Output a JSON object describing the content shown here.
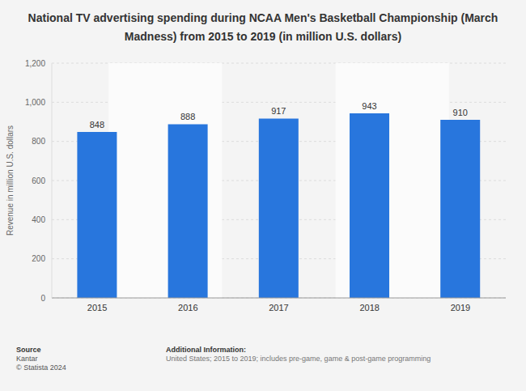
{
  "chart_data": {
    "type": "bar",
    "title": "National TV advertising spending during NCAA Men's Basketball Championship (March Madness) from 2015 to 2019 (in million U.S. dollars)",
    "y_label": "Revenue in million U.S. dollars",
    "categories": [
      "2015",
      "2016",
      "2017",
      "2018",
      "2019"
    ],
    "values": [
      848,
      888,
      917,
      943,
      910
    ],
    "color": "#2876dd",
    "ylim": [
      0,
      1200
    ],
    "yticks": [
      0,
      200,
      400,
      600,
      800,
      {
        "value": 1000,
        "label": "1,000"
      },
      {
        "value": 1200,
        "label": "1,200"
      }
    ],
    "grid": true,
    "data_labels": true,
    "source_label": "Source",
    "source": "Kantar",
    "copyright": "© Statista 2024",
    "additional_info_label": "Additional Information:",
    "additional_info": "United States; 2015 to 2019; includes pre-game, game & post-game programming"
  }
}
